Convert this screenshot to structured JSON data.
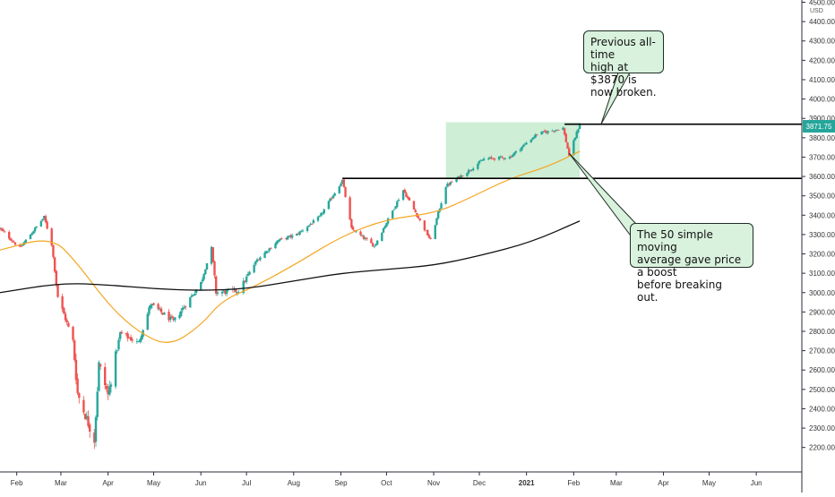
{
  "chart_data": {
    "type": "candlestick",
    "title": "",
    "currency": "USD",
    "last_price": "3871.75",
    "y_axis": {
      "ylim": [
        2150,
        4500
      ],
      "ticks": [
        "4500.00",
        "4400.00",
        "4300.00",
        "4200.00",
        "4100.00",
        "4000.00",
        "3900.00",
        "3800.00",
        "3700.00",
        "3600.00",
        "3500.00",
        "3400.00",
        "3300.00",
        "3200.00",
        "3100.00",
        "3000.00",
        "2900.00",
        "2800.00",
        "2700.00",
        "2600.00",
        "2500.00",
        "2400.00",
        "2300.00",
        "2200.00"
      ]
    },
    "x_axis": {
      "ticks": [
        "Feb",
        "Mar",
        "Apr",
        "May",
        "Jun",
        "Jul",
        "Aug",
        "Sep",
        "Oct",
        "Nov",
        "Dec",
        "2021",
        "Feb",
        "Mar",
        "Apr",
        "May",
        "Jun"
      ],
      "range": [
        "2020-01-21",
        "2021-06-28"
      ]
    },
    "price_path": [
      [
        "2020-01-21",
        3330
      ],
      [
        "2020-02-03",
        3230
      ],
      [
        "2020-02-19",
        3390
      ],
      [
        "2020-02-24",
        3250
      ],
      [
        "2020-02-28",
        2980
      ],
      [
        "2020-03-09",
        2750
      ],
      [
        "2020-03-12",
        2480
      ],
      [
        "2020-03-16",
        2390
      ],
      [
        "2020-03-23",
        2240
      ],
      [
        "2020-03-26",
        2630
      ],
      [
        "2020-04-01",
        2470
      ],
      [
        "2020-04-09",
        2790
      ],
      [
        "2020-04-21",
        2740
      ],
      [
        "2020-04-29",
        2940
      ],
      [
        "2020-05-14",
        2850
      ],
      [
        "2020-06-01",
        3050
      ],
      [
        "2020-06-08",
        3230
      ],
      [
        "2020-06-11",
        3000
      ],
      [
        "2020-06-26",
        3010
      ],
      [
        "2020-07-08",
        3170
      ],
      [
        "2020-07-22",
        3270
      ],
      [
        "2020-08-03",
        3300
      ],
      [
        "2020-08-18",
        3390
      ],
      [
        "2020-09-02",
        3580
      ],
      [
        "2020-09-08",
        3330
      ],
      [
        "2020-09-23",
        3240
      ],
      [
        "2020-10-12",
        3530
      ],
      [
        "2020-10-30",
        3270
      ],
      [
        "2020-11-09",
        3550
      ],
      [
        "2020-11-24",
        3630
      ],
      [
        "2020-12-04",
        3690
      ],
      [
        "2020-12-21",
        3700
      ],
      [
        "2021-01-08",
        3820
      ],
      [
        "2021-01-25",
        3850
      ],
      [
        "2021-01-29",
        3710
      ],
      [
        "2021-02-05",
        3871.75
      ]
    ],
    "series": [
      {
        "name": "",
        "color": "#f5a623",
        "values": [
          [
            "2020-01-21",
            3220
          ],
          [
            "2020-02-24",
            3290
          ],
          [
            "2020-03-12",
            3150
          ],
          [
            "2020-04-01",
            2940
          ],
          [
            "2020-04-20",
            2800
          ],
          [
            "2020-05-11",
            2720
          ],
          [
            "2020-06-01",
            2830
          ],
          [
            "2020-06-15",
            2960
          ],
          [
            "2020-07-06",
            3030
          ],
          [
            "2020-08-03",
            3150
          ],
          [
            "2020-09-01",
            3290
          ],
          [
            "2020-10-01",
            3380
          ],
          [
            "2020-11-02",
            3410
          ],
          [
            "2020-11-25",
            3490
          ],
          [
            "2020-12-21",
            3590
          ],
          [
            "2021-01-15",
            3650
          ],
          [
            "2021-02-05",
            3730
          ]
        ]
      },
      {
        "name": "",
        "color": "#111111",
        "values": [
          [
            "2020-01-21",
            3000
          ],
          [
            "2020-03-01",
            3050
          ],
          [
            "2020-04-01",
            3040
          ],
          [
            "2020-05-01",
            3020
          ],
          [
            "2020-06-01",
            3010
          ],
          [
            "2020-07-01",
            3020
          ],
          [
            "2020-08-01",
            3060
          ],
          [
            "2020-09-01",
            3100
          ],
          [
            "2020-10-01",
            3120
          ],
          [
            "2020-11-01",
            3140
          ],
          [
            "2020-12-01",
            3190
          ],
          [
            "2021-01-04",
            3260
          ],
          [
            "2021-02-05",
            3370
          ]
        ]
      }
    ],
    "levels": [
      {
        "price": 3870,
        "from": "2021-01-26",
        "to": "2021-06-28"
      },
      {
        "price": 3590,
        "from": "2020-09-02",
        "to": "2021-06-28"
      }
    ],
    "highlight_box": {
      "x_from": "2020-11-09",
      "x_to": "2021-02-05",
      "y_from": 3590,
      "y_to": 3880,
      "color": "#c6ebcf"
    },
    "annotations": [
      {
        "text": "Previous all-time\nhigh at $3870 is\nnow broken.",
        "points_to": {
          "date": "2021-02-19",
          "price": 3870
        }
      },
      {
        "text": "The 50 simple moving\naverage gave price a boost\nbefore breaking out.",
        "points_to": {
          "date": "2021-01-29",
          "price": 3720
        }
      }
    ]
  }
}
